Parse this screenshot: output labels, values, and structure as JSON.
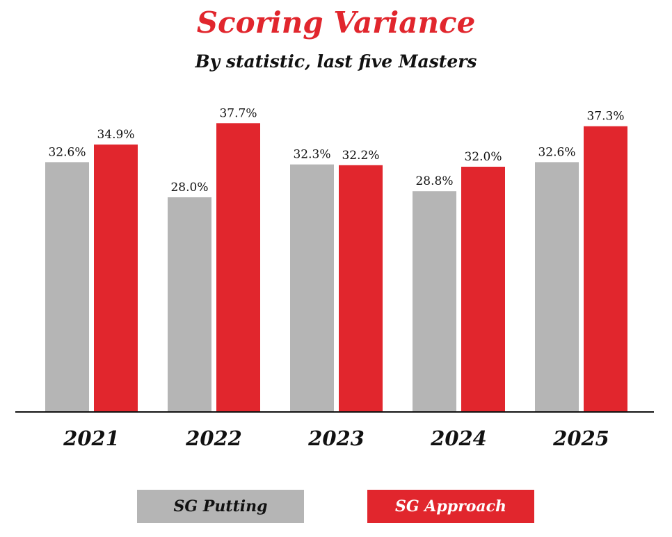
{
  "chart_data": {
    "type": "bar",
    "title": "Scoring Variance",
    "subtitle": "By statistic, last five Masters",
    "categories": [
      "2021",
      "2022",
      "2023",
      "2024",
      "2025"
    ],
    "series": [
      {
        "name": "SG Putting",
        "values": [
          32.6,
          28.0,
          32.3,
          28.8,
          32.6
        ],
        "labels": [
          "32.6%",
          "28.0%",
          "32.3%",
          "28.8%",
          "32.6%"
        ],
        "color": "#b5b5b5"
      },
      {
        "name": "SG Approach",
        "values": [
          34.9,
          37.7,
          32.2,
          32.0,
          37.3
        ],
        "labels": [
          "34.9%",
          "37.7%",
          "32.2%",
          "32.0%",
          "37.3%"
        ],
        "color": "#e1262d"
      }
    ],
    "ylim": [
      0,
      40
    ],
    "grid": false,
    "legend_position": "bottom"
  }
}
